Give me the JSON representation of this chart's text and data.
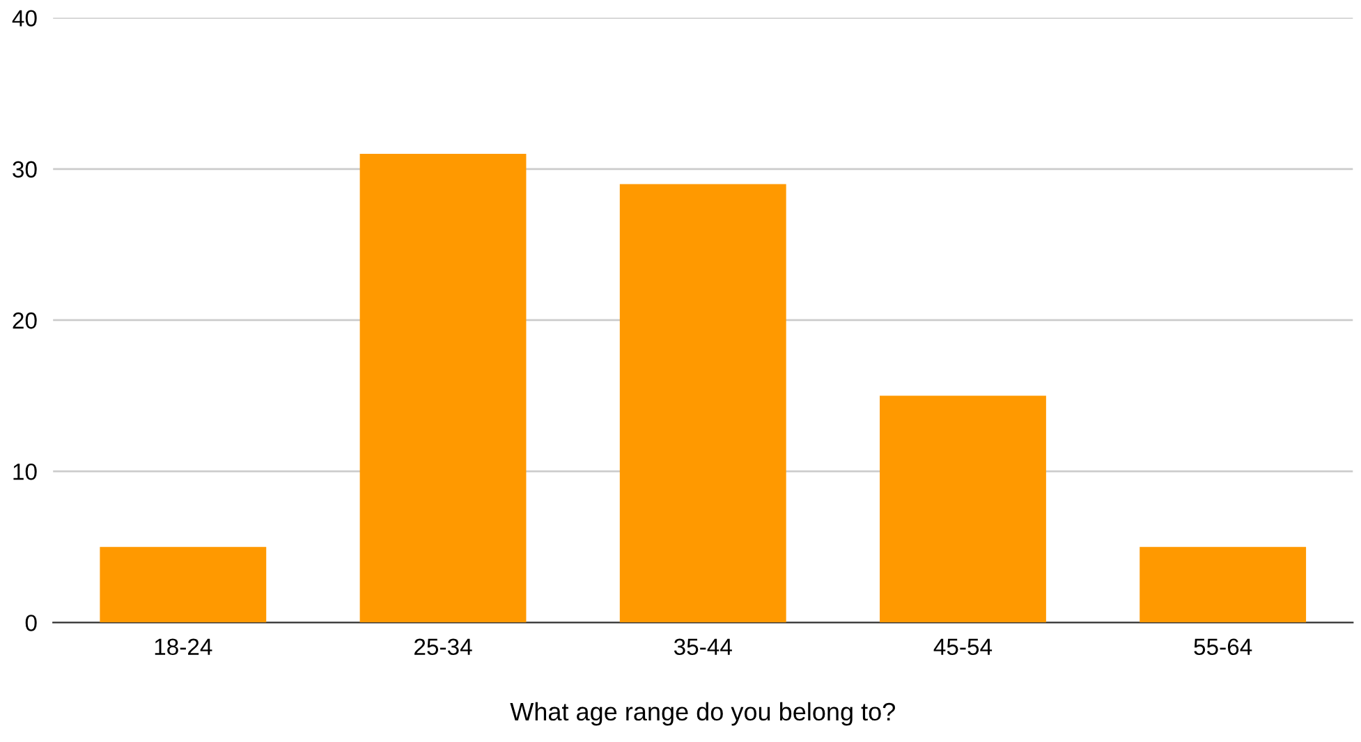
{
  "chart_data": {
    "type": "bar",
    "xlabel": "What age range do you belong to?",
    "categories": [
      "18-24",
      "25-34",
      "35-44",
      "45-54",
      "55-64"
    ],
    "values": [
      5,
      31,
      29,
      15,
      5
    ],
    "color": "#ff9900",
    "ylim": [
      0,
      40
    ],
    "yticks": [
      0,
      10,
      20,
      30,
      40
    ],
    "grid": "y"
  }
}
